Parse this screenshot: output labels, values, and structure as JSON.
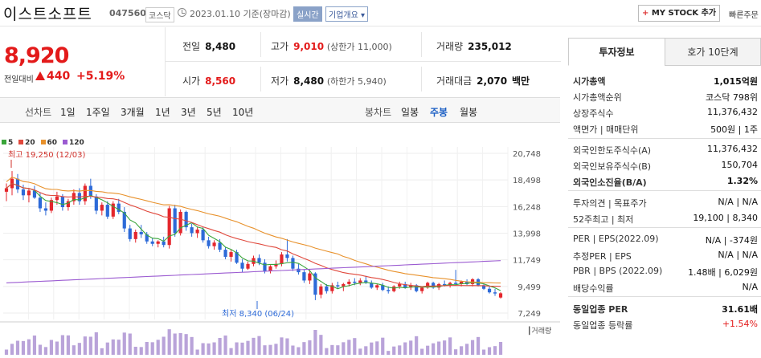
{
  "header": {
    "company": "이스트소프트",
    "code": "047560",
    "market": "코스닥",
    "date": "2023.01.10 기준(장마감)",
    "live_label": "실시간",
    "overview_label": "기업개요",
    "mystock_label": "MY STOCK 추가",
    "quick_label": "빠른주문"
  },
  "price": {
    "current": "8,920",
    "change_label": "전일대비",
    "change": "440",
    "change_pct": "+5.19%"
  },
  "stats": {
    "prev_close_label": "전일",
    "prev_close": "8,480",
    "high_label": "고가",
    "high": "9,010",
    "high_sub": "(상한가 11,000)",
    "volume_label": "거래량",
    "volume": "235,012",
    "open_label": "시가",
    "open": "8,560",
    "low_label": "저가",
    "low": "8,480",
    "low_sub": "(하한가 5,940)",
    "amount_label": "거래대금",
    "amount": "2,070",
    "amount_unit": "백만"
  },
  "periods": {
    "line_label": "선차트",
    "items": [
      "1일",
      "1주일",
      "3개월",
      "1년",
      "3년",
      "5년",
      "10년"
    ],
    "candle_label": "봉차트",
    "candle_items": [
      "일봉",
      "주봉",
      "월봉"
    ],
    "selected_candle": "주봉"
  },
  "chart_data": {
    "type": "candlestick",
    "legend": [
      {
        "name": "5",
        "color": "#3aa53a"
      },
      {
        "name": "20",
        "color": "#e0483c"
      },
      {
        "name": "60",
        "color": "#e8912b"
      },
      {
        "name": "120",
        "color": "#9b5bd1"
      }
    ],
    "y_ticks": [
      "20,748",
      "18,498",
      "16,248",
      "13,998",
      "11,749",
      "9,499",
      "7,249"
    ],
    "ylim": [
      7249,
      20748
    ],
    "high_annotation": "최고 19,250 (12/03)",
    "low_annotation": "최저 8,340 (06/24)",
    "volume_label": "거래량",
    "candles": [
      [
        17500,
        18200,
        16700,
        17800
      ],
      [
        17800,
        19250,
        17200,
        18600
      ],
      [
        18600,
        19000,
        17400,
        17700
      ],
      [
        17700,
        18100,
        16800,
        17200
      ],
      [
        17200,
        17800,
        16600,
        17600
      ],
      [
        17600,
        18000,
        16900,
        17000
      ],
      [
        17000,
        17400,
        15800,
        16100
      ],
      [
        16100,
        16600,
        15500,
        15900
      ],
      [
        15900,
        17000,
        15700,
        16800
      ],
      [
        16800,
        17500,
        16400,
        17100
      ],
      [
        17100,
        17300,
        15900,
        16200
      ],
      [
        16200,
        16900,
        15900,
        16700
      ],
      [
        16700,
        17700,
        16400,
        17400
      ],
      [
        17400,
        17800,
        16400,
        16700
      ],
      [
        16700,
        18200,
        16400,
        18000
      ],
      [
        18000,
        18600,
        16900,
        17100
      ],
      [
        17100,
        17300,
        15600,
        15900
      ],
      [
        15900,
        16600,
        15500,
        16400
      ],
      [
        16400,
        16700,
        15200,
        15400
      ],
      [
        15400,
        16700,
        15200,
        16500
      ],
      [
        16500,
        16900,
        15600,
        15800
      ],
      [
        15800,
        16200,
        14100,
        14400
      ],
      [
        14400,
        14700,
        13300,
        13500
      ],
      [
        13500,
        14300,
        13200,
        14100
      ],
      [
        14100,
        14700,
        13600,
        13900
      ],
      [
        13900,
        14100,
        13100,
        13300
      ],
      [
        13300,
        13600,
        12900,
        13100
      ],
      [
        13100,
        13400,
        12800,
        13300
      ],
      [
        13300,
        13700,
        12800,
        13000
      ],
      [
        13000,
        16300,
        12700,
        16100
      ],
      [
        16100,
        16400,
        13700,
        14000
      ],
      [
        14000,
        16000,
        13800,
        15800
      ],
      [
        15800,
        15900,
        14200,
        14500
      ],
      [
        14500,
        14800,
        13700,
        14000
      ],
      [
        14000,
        14500,
        13600,
        14300
      ],
      [
        14300,
        14500,
        13200,
        13400
      ],
      [
        13400,
        13700,
        12700,
        12900
      ],
      [
        12900,
        13400,
        12600,
        13200
      ],
      [
        13200,
        13500,
        12400,
        12600
      ],
      [
        12600,
        12800,
        11800,
        12000
      ],
      [
        12000,
        12600,
        11600,
        12400
      ],
      [
        12400,
        12600,
        11400,
        11500
      ],
      [
        11500,
        11800,
        10700,
        11000
      ],
      [
        11000,
        11600,
        10900,
        11400
      ],
      [
        11400,
        12100,
        11200,
        11900
      ],
      [
        11900,
        12200,
        11300,
        11500
      ],
      [
        11500,
        11800,
        10600,
        10800
      ],
      [
        10800,
        11300,
        10600,
        11200
      ],
      [
        11200,
        11700,
        11000,
        11400
      ],
      [
        11400,
        12400,
        11200,
        12200
      ],
      [
        12200,
        13500,
        11600,
        11900
      ],
      [
        11900,
        12100,
        10800,
        11000
      ],
      [
        11000,
        11400,
        10500,
        10700
      ],
      [
        10700,
        10900,
        9800,
        10000
      ],
      [
        10000,
        10900,
        9700,
        10600
      ],
      [
        10600,
        10700,
        8340,
        8800
      ],
      [
        8800,
        9700,
        8500,
        9500
      ],
      [
        9500,
        9700,
        8900,
        9100
      ],
      [
        9100,
        9800,
        8900,
        9600
      ],
      [
        9600,
        9900,
        9300,
        9500
      ],
      [
        9500,
        9800,
        9100,
        9700
      ],
      [
        9700,
        10100,
        9500,
        9900
      ],
      [
        9900,
        10200,
        9600,
        9800
      ],
      [
        9800,
        10200,
        9600,
        10000
      ],
      [
        10000,
        10400,
        9700,
        9800
      ],
      [
        9800,
        10000,
        9300,
        9400
      ],
      [
        9400,
        9700,
        9200,
        9600
      ],
      [
        9600,
        9800,
        9100,
        9200
      ],
      [
        9200,
        9500,
        8900,
        9100
      ],
      [
        9100,
        9600,
        9000,
        9500
      ],
      [
        9500,
        9900,
        9300,
        9700
      ],
      [
        9700,
        9900,
        9300,
        9400
      ],
      [
        9400,
        9800,
        9200,
        9600
      ],
      [
        9600,
        9700,
        9000,
        9100
      ],
      [
        9100,
        9500,
        8900,
        9400
      ],
      [
        9400,
        9900,
        9300,
        9800
      ],
      [
        9800,
        9900,
        9300,
        9400
      ],
      [
        9400,
        9800,
        9200,
        9700
      ],
      [
        9700,
        10000,
        9500,
        9600
      ],
      [
        9600,
        9900,
        9400,
        9800
      ],
      [
        9800,
        10900,
        9600,
        9700
      ],
      [
        9700,
        10000,
        9500,
        9900
      ],
      [
        9900,
        10100,
        9600,
        9700
      ],
      [
        9700,
        10200,
        9500,
        10100
      ],
      [
        10100,
        10200,
        9500,
        9600
      ],
      [
        9600,
        9700,
        9200,
        9300
      ],
      [
        9300,
        9500,
        8900,
        9000
      ],
      [
        9000,
        9300,
        8700,
        8900
      ],
      [
        8560,
        9010,
        8480,
        8920
      ]
    ]
  },
  "panel": {
    "tab_invest": "투자정보",
    "tab_quote": "호가 10단계",
    "rows": [
      {
        "k": "시가총액",
        "v": "1,015억원",
        "bold": true
      },
      {
        "k": "시가총액순위",
        "v": "코스닥 798위"
      },
      {
        "k": "상장주식수",
        "v": "11,376,432"
      },
      {
        "k": "액면가 | 매매단위",
        "v": "500원 | 1주"
      },
      {
        "k": "외국인한도주식수(A)",
        "v": "11,376,432"
      },
      {
        "k": "외국인보유주식수(B)",
        "v": "150,704"
      },
      {
        "k": "외국인소진율(B/A)",
        "v": "1.32%",
        "bold": true
      },
      {
        "k": "투자의견 | 목표주가",
        "v": "N/A | N/A"
      },
      {
        "k": "52주최고 | 최저",
        "v": "19,100 | 8,340"
      },
      {
        "k": "PER | EPS(2022.09)",
        "v": "N/A | -374원"
      },
      {
        "k": "추정PER | EPS",
        "v": "N/A | N/A"
      },
      {
        "k": "PBR | BPS (2022.09)",
        "v": "1.48배 | 6,029원"
      },
      {
        "k": "배당수익률",
        "v": "N/A"
      },
      {
        "k": "동일업종 PER",
        "v": "31.61배",
        "bold": true
      },
      {
        "k": "동일업종 등락률",
        "v": "+1.54%",
        "red": true
      }
    ]
  }
}
